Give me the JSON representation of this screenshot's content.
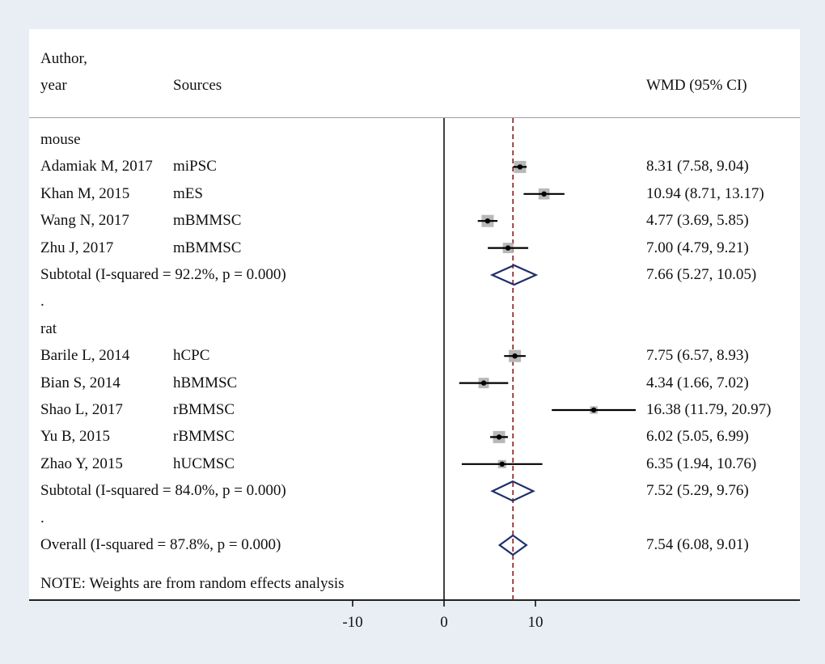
{
  "header": {
    "author_line1": "Author,",
    "author_line2": "year",
    "sources": "Sources",
    "effect": "WMD (95% CI)"
  },
  "note": "NOTE: Weights are from random effects analysis",
  "colors": {
    "background": "#e8eef4",
    "plot": "#ffffff",
    "diamond": "#1f2f6b",
    "ref_line": "#8b1a1a",
    "weight_box": "#b8b8b8"
  },
  "chart_data": {
    "type": "forest",
    "measure": "WMD (95% CI)",
    "x_ticks": [
      -10,
      0,
      10
    ],
    "x_tick_labels": [
      "-10",
      "0",
      "10"
    ],
    "null_line": 0,
    "overall_line": 7.54,
    "rows": [
      {
        "kind": "group",
        "label": "mouse"
      },
      {
        "kind": "study",
        "author": "Adamiak M, 2017",
        "source": "miPSC",
        "est": 8.31,
        "lo": 7.58,
        "hi": 9.04,
        "ci_text": "8.31 (7.58, 9.04)",
        "weight": 1.0
      },
      {
        "kind": "study",
        "author": "Khan M, 2015",
        "source": "mES",
        "est": 10.94,
        "lo": 8.71,
        "hi": 13.17,
        "ci_text": "10.94 (8.71, 13.17)",
        "weight": 0.9
      },
      {
        "kind": "study",
        "author": "Wang  N, 2017",
        "source": "mBMMSC",
        "est": 4.77,
        "lo": 3.69,
        "hi": 5.85,
        "ci_text": "4.77 (3.69, 5.85)",
        "weight": 1.0
      },
      {
        "kind": "study",
        "author": "Zhu J, 2017",
        "source": "mBMMSC",
        "est": 7.0,
        "lo": 4.79,
        "hi": 9.21,
        "ci_text": "7.00 (4.79, 9.21)",
        "weight": 0.85
      },
      {
        "kind": "subtotal",
        "label": "Subtotal  (I-squared = 92.2%, p = 0.000)",
        "est": 7.66,
        "lo": 5.27,
        "hi": 10.05,
        "ci_text": "7.66 (5.27, 10.05)"
      },
      {
        "kind": "dot",
        "label": "."
      },
      {
        "kind": "group",
        "label": "rat"
      },
      {
        "kind": "study",
        "author": "Barile L, 2014",
        "source": "hCPC",
        "est": 7.75,
        "lo": 6.57,
        "hi": 8.93,
        "ci_text": "7.75 (6.57, 8.93)",
        "weight": 1.0
      },
      {
        "kind": "study",
        "author": "Bian S, 2014",
        "source": "hBMMSC",
        "est": 4.34,
        "lo": 1.66,
        "hi": 7.02,
        "ci_text": "4.34 (1.66, 7.02)",
        "weight": 0.85
      },
      {
        "kind": "study",
        "author": "Shao L, 2017",
        "source": "rBMMSC",
        "est": 16.38,
        "lo": 11.79,
        "hi": 20.97,
        "ci_text": "16.38 (11.79, 20.97)",
        "weight": 0.6
      },
      {
        "kind": "study",
        "author": "Yu B, 2015",
        "source": "rBMMSC",
        "est": 6.02,
        "lo": 5.05,
        "hi": 6.99,
        "ci_text": "6.02 (5.05, 6.99)",
        "weight": 1.0
      },
      {
        "kind": "study",
        "author": "Zhao Y, 2015",
        "source": "hUCMSC",
        "est": 6.35,
        "lo": 1.94,
        "hi": 10.76,
        "ci_text": "6.35 (1.94, 10.76)",
        "weight": 0.65
      },
      {
        "kind": "subtotal",
        "label": "Subtotal  (I-squared = 84.0%, p = 0.000)",
        "est": 7.52,
        "lo": 5.29,
        "hi": 9.76,
        "ci_text": "7.52 (5.29, 9.76)"
      },
      {
        "kind": "dot",
        "label": "."
      },
      {
        "kind": "overall",
        "label": "Overall  (I-squared = 87.8%, p = 0.000)",
        "est": 7.54,
        "lo": 6.08,
        "hi": 9.01,
        "ci_text": "7.54 (6.08, 9.01)"
      }
    ]
  }
}
